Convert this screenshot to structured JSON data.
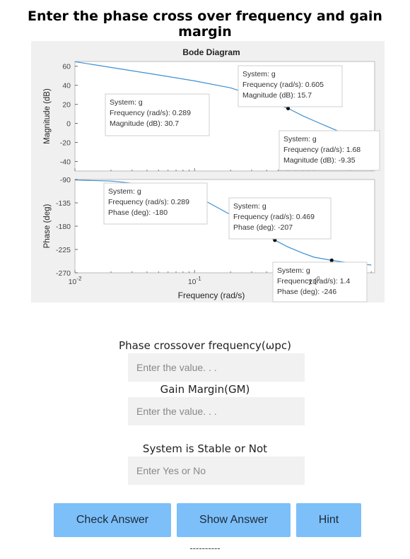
{
  "page": {
    "title": "Enter the phase cross over frequency and gain margin"
  },
  "figure": {
    "title": "Bode Diagram",
    "line_color": "#3d8fd1"
  },
  "chart_data": {
    "type": "line",
    "title": "Bode Diagram",
    "xlabel": "Frequency  (rad/s)",
    "x_scale": "log",
    "x_ticks": [
      "10",
      "10",
      "10"
    ],
    "x_tick_exponents": [
      "-2",
      "-1",
      "0"
    ],
    "magnitude": {
      "ylabel": "Magnitude (dB)",
      "ylim": [
        -50,
        65
      ],
      "yticks": [
        "60",
        "40",
        "20",
        "0",
        "-20",
        "-40"
      ],
      "series": [
        {
          "x": [
            0.01,
            0.02,
            0.05,
            0.1,
            0.2,
            0.289,
            0.4,
            0.605,
            0.8,
            1.0,
            1.3,
            1.68,
            2.2,
            3.0
          ],
          "values": [
            64.8,
            58.8,
            50.8,
            44.6,
            37.3,
            30.7,
            24.0,
            15.7,
            8.0,
            2.7,
            -3.5,
            -9.35,
            -15.5,
            -22.0
          ]
        }
      ],
      "datatips": [
        {
          "x": 0.289,
          "y": 30.7,
          "lines": [
            "System: g",
            "Frequency (rad/s): 0.289",
            "Magnitude (dB): 30.7"
          ]
        },
        {
          "x": 0.605,
          "y": 15.7,
          "lines": [
            "System: g",
            "Frequency (rad/s): 0.605",
            "Magnitude (dB): 15.7"
          ]
        },
        {
          "x": 1.68,
          "y": -9.35,
          "lines": [
            "System: g",
            "Frequency (rad/s): 1.68",
            "Magnitude (dB): -9.35"
          ]
        }
      ]
    },
    "phase": {
      "ylabel": "Phase (deg)",
      "ylim": [
        -270,
        -90
      ],
      "yticks": [
        "-90",
        "-135",
        "-180",
        "-225",
        "-270"
      ],
      "series": [
        {
          "x": [
            0.01,
            0.02,
            0.05,
            0.1,
            0.2,
            0.289,
            0.35,
            0.469,
            0.6,
            0.8,
            1.0,
            1.4,
            2.0,
            3.0
          ],
          "values": [
            -91,
            -93,
            -102,
            -120,
            -158,
            -180,
            -192,
            -207,
            -220,
            -232,
            -240,
            -246,
            -251,
            -255
          ]
        }
      ],
      "datatips": [
        {
          "x": 0.289,
          "y": -180,
          "lines": [
            "System: g",
            "Frequency (rad/s): 0.289",
            "Phase (deg): -180"
          ]
        },
        {
          "x": 0.469,
          "y": -207,
          "lines": [
            "System: g",
            "Frequency (rad/s): 0.469",
            "Phase (deg): -207"
          ]
        },
        {
          "x": 1.4,
          "y": -246,
          "lines": [
            "System: g",
            "Frequency (rad/s): 1.4",
            "Phase (deg): -246"
          ]
        }
      ]
    }
  },
  "form": {
    "pcf_label": "Phase crossover frequency(ωpc)",
    "pcf_placeholder": "Enter the value. . .",
    "gm_label": "Gain Margin(GM)",
    "gm_placeholder": "Enter the value. . .",
    "stable_label": "System is Stable or Not",
    "stable_placeholder": "Enter Yes or No"
  },
  "buttons": {
    "check": "Check Answer",
    "show": "Show Answer",
    "hint": "Hint"
  },
  "footer": {
    "separator": "----------"
  }
}
